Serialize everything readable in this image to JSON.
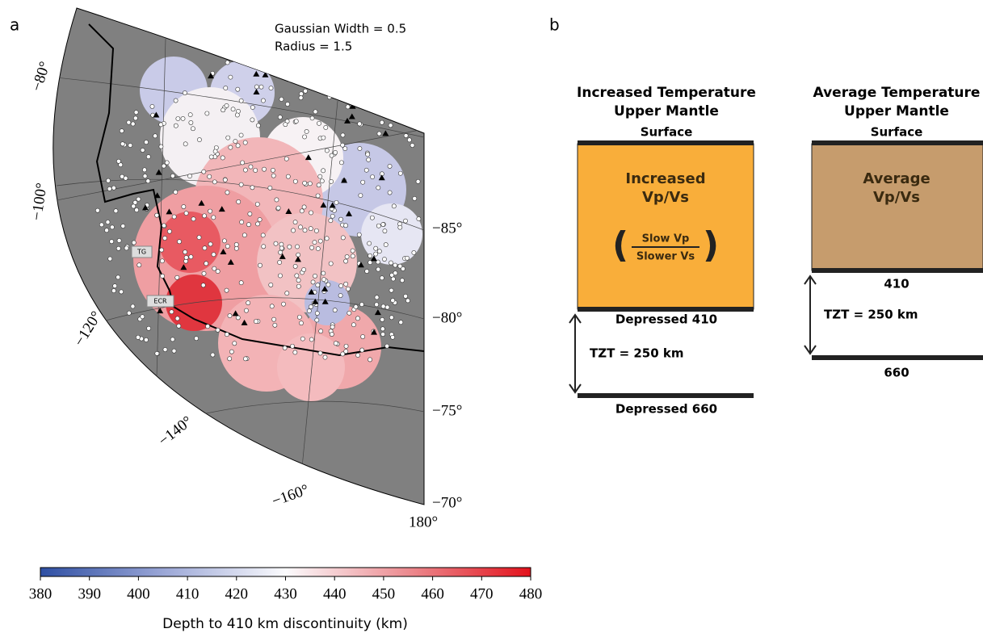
{
  "panel_a": {
    "label": "a",
    "annotation": [
      "Gaussian Width = 0.5",
      "Radius = 1.5"
    ],
    "longitude_labels": [
      "−80°",
      "−100°",
      "−120°",
      "−140°",
      "−160°",
      "180°"
    ],
    "latitude_labels": [
      "−85°",
      "−80°",
      "−75°",
      "−70°"
    ],
    "site_labels": [
      "TG",
      "ECR"
    ],
    "colorbar": {
      "ticks": [
        380,
        390,
        400,
        410,
        420,
        430,
        440,
        450,
        460,
        470,
        480
      ],
      "label": "Depth to 410 km discontinuity (km)"
    }
  },
  "panel_b": {
    "label": "b",
    "left": {
      "title": [
        "Increased Temperature",
        "Upper Mantle"
      ],
      "top": "Surface",
      "box": [
        "Increased",
        "Vp/Vs"
      ],
      "fraction": [
        "Slow Vp",
        "Slower Vs"
      ],
      "upper": "Depressed 410",
      "thickness": "TZT = 250 km",
      "lower": "Depressed 660"
    },
    "right": {
      "title": [
        "Average Temperature",
        "Upper Mantle"
      ],
      "top": "Surface",
      "box": [
        "Average",
        "Vp/Vs"
      ],
      "upper": "410",
      "thickness": "TZT = 250 km",
      "lower": "660"
    }
  }
}
